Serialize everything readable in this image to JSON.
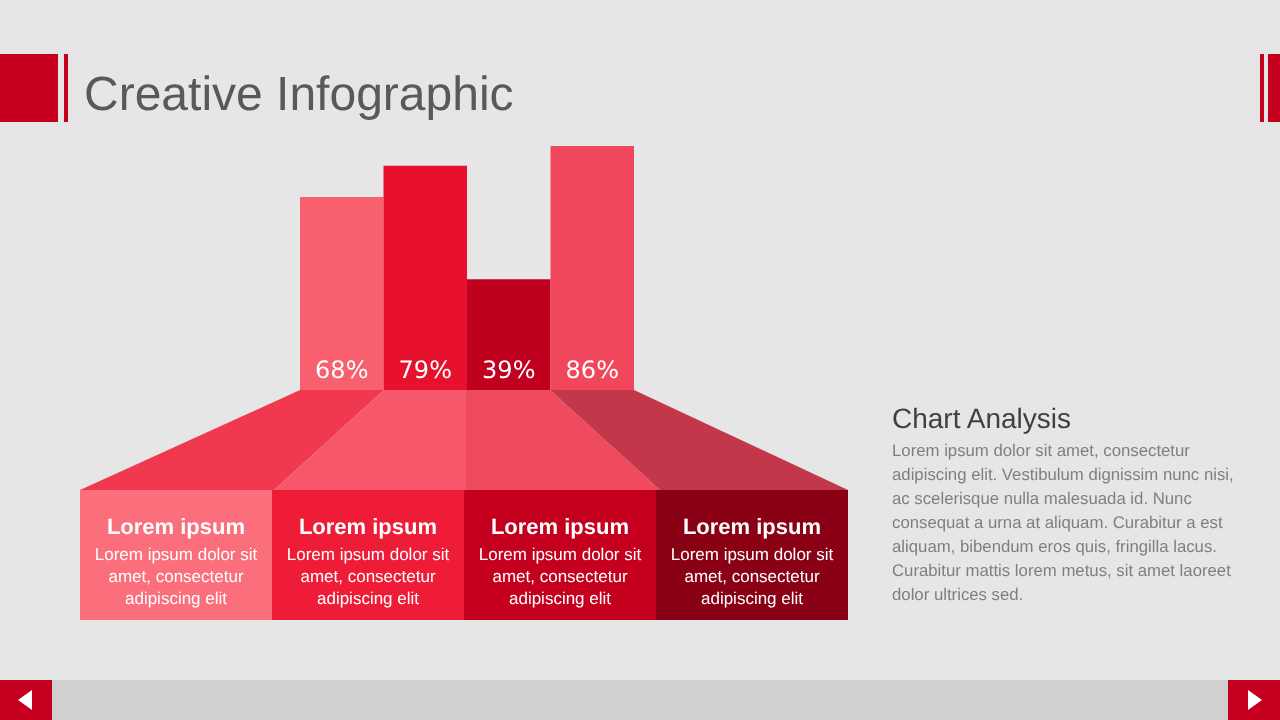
{
  "chart_data": {
    "type": "bar",
    "title": "Creative Infographic",
    "tick_labels": false,
    "categories": [
      null,
      null,
      null,
      null
    ],
    "values": [
      68,
      79,
      39,
      86
    ],
    "colors": [
      "#f9606f",
      "#e8112d",
      "#c0001f",
      "#f0475c"
    ],
    "value_labels": [
      "68%",
      "79%",
      "39%",
      "86%"
    ],
    "annotations": [
      "Lorem ipsum",
      "Lorem ipsum dolor sit amet, consectetur adipiscing elit",
      "Lorem ipsum",
      "Lorem ipsum dolor sit amet, consectetur adipiscing elit",
      "Lorem ipsum",
      "Lorem ipsum dolor sit amet, consectetur adipiscing elit",
      "Lorem ipsum",
      "Lorem ipsum dolor sit amet, consectetur adipiscing elit",
      "Chart Analysis",
      "Lorem ipsum dolor sit amet, consectetur adipiscing elit. Vestibulum dignissim nunc nisi, ac scelerisque nulla malesuada id. Nunc consequat a urna at aliquam. Curabitur a est aliquam, bibendum eros quis, fringilla lacus. Curabitur mattis lorem metus, sit amet laoreet dolor ultrices sed."
    ]
  }
}
